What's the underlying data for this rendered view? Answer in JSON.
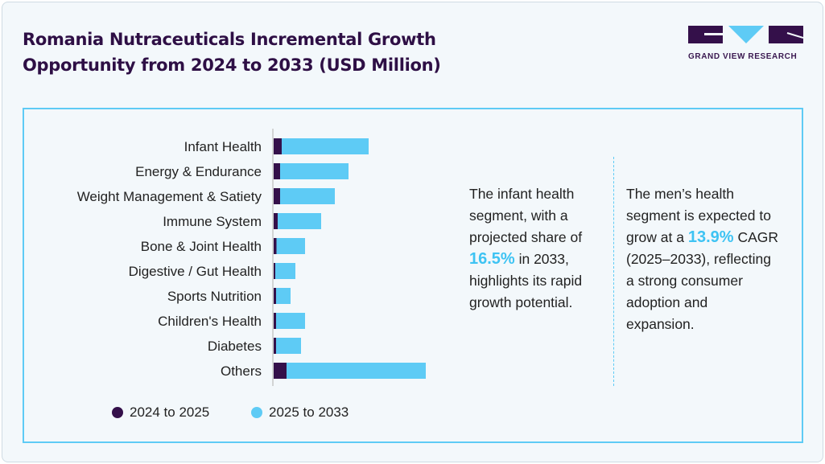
{
  "title_line1": "Romania Nutraceuticals Incremental Growth",
  "title_line2": "Opportunity from 2024 to 2033 (USD Million)",
  "logo": {
    "text": "GRAND VIEW RESEARCH"
  },
  "colors": {
    "dark": "#34104a",
    "light": "#5ecbf5"
  },
  "chart_data": {
    "type": "bar",
    "orientation": "horizontal",
    "stacked": true,
    "categories": [
      "Infant Health",
      "Energy & Endurance",
      "Weight Management & Satiety",
      "Immune System",
      "Bone & Joint Health",
      "Digestive / Gut Health",
      "Sports Nutrition",
      "Children's Health",
      "Diabetes",
      "Others"
    ],
    "series": [
      {
        "name": "2024 to 2025",
        "color": "#34104a",
        "values": [
          10,
          8,
          8,
          5,
          3.5,
          2,
          3,
          3,
          3,
          16
        ]
      },
      {
        "name": "2025 to 2033",
        "color": "#5ecbf5",
        "values": [
          108,
          85,
          68,
          54,
          35.5,
          25,
          18,
          36,
          31,
          173
        ]
      }
    ],
    "value_note": "relative (no axis printed)",
    "legend": "bottom-left",
    "grid": false
  },
  "notes": [
    {
      "before": "The infant health segment, with a projected share of ",
      "highlight": "16.5%",
      "after": " in 2033, highlights its rapid growth potential."
    },
    {
      "before": "The men’s health segment is expected to grow at a ",
      "highlight": "13.9%",
      "after": " CAGR (2025–2033), reflecting a strong consumer adoption and expansion."
    }
  ]
}
